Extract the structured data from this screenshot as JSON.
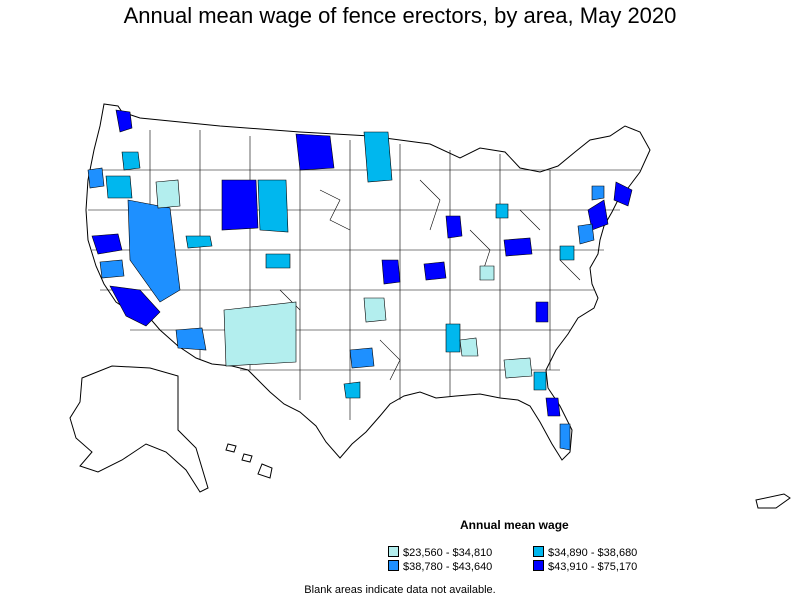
{
  "title": "Annual mean wage of fence erectors, by area, May 2020",
  "colors": {
    "c1": "#b3eeee",
    "c2": "#00b7ee",
    "c3": "#1e90ff",
    "c4": "#0000ff",
    "border": "#000000"
  },
  "legend": {
    "title": "Annual mean wage",
    "items": [
      {
        "label": "$23,560 - $34,810",
        "color": "#b3eeee"
      },
      {
        "label": "$34,890 - $38,680",
        "color": "#00b7ee"
      },
      {
        "label": "$38,780 - $43,640",
        "color": "#1e90ff"
      },
      {
        "label": "$43,910 - $75,170",
        "color": "#0000ff"
      }
    ]
  },
  "note": "Blank areas indicate data not available."
}
